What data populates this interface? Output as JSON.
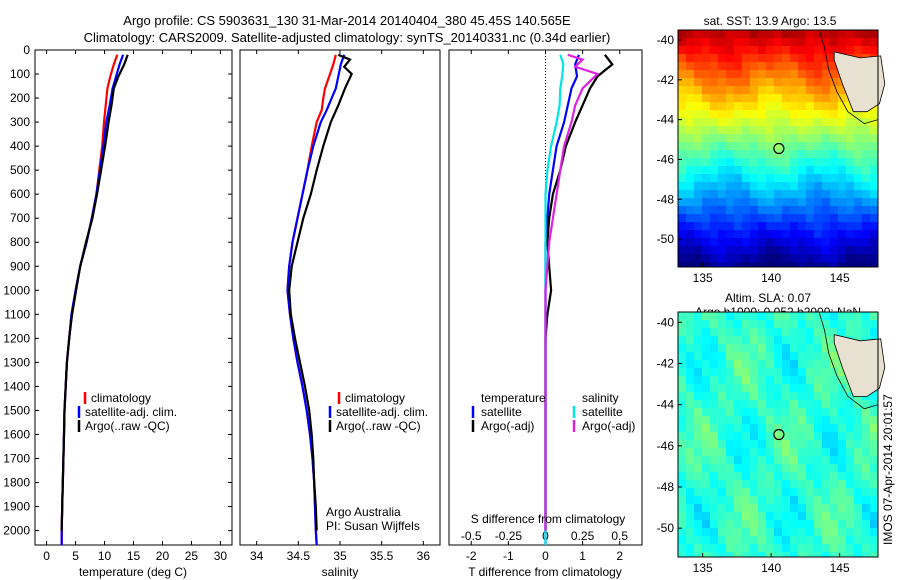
{
  "titles": {
    "line1": "Argo profile: CS 5903631_130 31-Mar-2014 20140404_380 45.45S 140.565E",
    "line2": "Climatology: CARS2009. Satellite-adjusted climatology: synTS_20140331.nc (0.34d earlier)"
  },
  "colors": {
    "clim": "#ff0000",
    "sat": "#0000ff",
    "argo": "#000000",
    "sat_s": "#00e5e5",
    "argo_s": "#e020e0"
  },
  "legend1": [
    "climatology",
    "satellite-adj. clim.",
    "Argo(..raw -QC)"
  ],
  "legend3": {
    "t_head": "temperature",
    "t_sat": "satellite",
    "t_argo": "Argo(-adj)",
    "s_head": "salinity",
    "s_sat": "satellite",
    "s_argo": "Argo(-adj)"
  },
  "panel2_note": {
    "l1": "Argo Australia",
    "l2": "PI: Susan Wijffels"
  },
  "panel3_s_label": "S difference from climatology",
  "map1_title": "sat. SST: 13.9  Argo: 13.5",
  "map2_title1": "Altim. SLA: 0.07",
  "map2_title2": "Argo h1000: 0.052 h2000: NaN",
  "watermark": "IMOS 07-Apr-2014 20:01:57",
  "chart_data": [
    {
      "type": "line",
      "xlabel": "temperature (deg C)",
      "ylabel": "",
      "xlim": [
        -2,
        32
      ],
      "ylim": [
        2060,
        0
      ],
      "xticks": [
        0,
        5,
        10,
        15,
        20,
        25,
        30
      ],
      "yticks": [
        0,
        100,
        200,
        300,
        400,
        500,
        600,
        700,
        800,
        900,
        1000,
        1100,
        1200,
        1300,
        1400,
        1500,
        1600,
        1700,
        1800,
        1900,
        2000
      ],
      "series": [
        {
          "name": "climatology",
          "color": "#ff0000",
          "points": [
            [
              12.2,
              20
            ],
            [
              11.6,
              60
            ],
            [
              11.0,
              110
            ],
            [
              10.5,
              160
            ],
            [
              10.2,
              230
            ],
            [
              9.9,
              300
            ],
            [
              9.6,
              400
            ],
            [
              9.1,
              500
            ],
            [
              8.6,
              600
            ],
            [
              7.8,
              700
            ],
            [
              6.9,
              800
            ],
            [
              5.8,
              900
            ],
            [
              5.0,
              1000
            ],
            [
              4.3,
              1100
            ],
            [
              3.9,
              1200
            ],
            [
              3.5,
              1300
            ],
            [
              3.3,
              1400
            ],
            [
              3.1,
              1500
            ],
            [
              3.0,
              1600
            ],
            [
              2.9,
              1700
            ],
            [
              2.8,
              1800
            ],
            [
              2.7,
              1900
            ],
            [
              2.6,
              2000
            ],
            [
              2.6,
              2060
            ]
          ]
        },
        {
          "name": "satellite-adj. clim.",
          "color": "#0000ff",
          "points": [
            [
              13.2,
              20
            ],
            [
              12.6,
              60
            ],
            [
              12.0,
              110
            ],
            [
              11.4,
              160
            ],
            [
              10.9,
              230
            ],
            [
              10.3,
              300
            ],
            [
              9.8,
              400
            ],
            [
              9.2,
              500
            ],
            [
              8.6,
              600
            ],
            [
              7.8,
              700
            ],
            [
              6.9,
              800
            ],
            [
              5.8,
              900
            ],
            [
              5.0,
              1000
            ],
            [
              4.3,
              1100
            ],
            [
              3.9,
              1200
            ],
            [
              3.5,
              1300
            ],
            [
              3.3,
              1400
            ],
            [
              3.1,
              1500
            ],
            [
              3.0,
              1600
            ],
            [
              2.9,
              1700
            ],
            [
              2.8,
              1800
            ],
            [
              2.7,
              1900
            ],
            [
              2.6,
              2000
            ],
            [
              2.6,
              2060
            ]
          ]
        },
        {
          "name": "Argo(..raw -QC)",
          "color": "#000000",
          "points": [
            [
              14.0,
              20
            ],
            [
              13.4,
              60
            ],
            [
              12.4,
              110
            ],
            [
              11.6,
              160
            ],
            [
              11.2,
              230
            ],
            [
              10.7,
              300
            ],
            [
              10.1,
              400
            ],
            [
              9.4,
              500
            ],
            [
              8.7,
              600
            ],
            [
              7.9,
              700
            ],
            [
              6.8,
              800
            ],
            [
              5.8,
              900
            ],
            [
              5.1,
              1000
            ],
            [
              4.4,
              1100
            ],
            [
              3.9,
              1200
            ],
            [
              3.5,
              1300
            ],
            [
              3.3,
              1400
            ],
            [
              3.1,
              1500
            ],
            [
              3.0,
              1600
            ],
            [
              2.9,
              1700
            ],
            [
              2.8,
              1800
            ],
            [
              2.7,
              1900
            ],
            [
              2.6,
              2000
            ]
          ]
        }
      ]
    },
    {
      "type": "line",
      "xlabel": "salinity",
      "ylabel": "",
      "xlim": [
        33.8,
        36.2
      ],
      "ylim": [
        2060,
        0
      ],
      "xticks": [
        34,
        34.5,
        35,
        35.5,
        36
      ],
      "yticks": [],
      "series": [
        {
          "name": "climatology",
          "color": "#ff0000",
          "points": [
            [
              34.95,
              20
            ],
            [
              34.92,
              60
            ],
            [
              34.87,
              110
            ],
            [
              34.82,
              160
            ],
            [
              34.8,
              200
            ],
            [
              34.78,
              250
            ],
            [
              34.72,
              300
            ],
            [
              34.66,
              400
            ],
            [
              34.61,
              500
            ],
            [
              34.55,
              600
            ],
            [
              34.49,
              700
            ],
            [
              34.43,
              800
            ],
            [
              34.39,
              900
            ],
            [
              34.37,
              1000
            ],
            [
              34.4,
              1100
            ],
            [
              34.44,
              1200
            ],
            [
              34.49,
              1300
            ],
            [
              34.55,
              1400
            ],
            [
              34.6,
              1500
            ],
            [
              34.64,
              1600
            ],
            [
              34.67,
              1700
            ],
            [
              34.69,
              1800
            ],
            [
              34.7,
              1900
            ],
            [
              34.71,
              2000
            ],
            [
              34.72,
              2060
            ]
          ]
        },
        {
          "name": "satellite-adj. clim.",
          "color": "#0000ff",
          "points": [
            [
              35.05,
              20
            ],
            [
              35.01,
              60
            ],
            [
              34.98,
              110
            ],
            [
              34.95,
              160
            ],
            [
              34.9,
              200
            ],
            [
              34.84,
              250
            ],
            [
              34.77,
              300
            ],
            [
              34.68,
              400
            ],
            [
              34.61,
              500
            ],
            [
              34.55,
              600
            ],
            [
              34.49,
              700
            ],
            [
              34.43,
              800
            ],
            [
              34.39,
              900
            ],
            [
              34.37,
              1000
            ],
            [
              34.4,
              1100
            ],
            [
              34.44,
              1200
            ],
            [
              34.49,
              1300
            ],
            [
              34.55,
              1400
            ],
            [
              34.6,
              1500
            ],
            [
              34.64,
              1600
            ],
            [
              34.67,
              1700
            ],
            [
              34.69,
              1800
            ],
            [
              34.7,
              1900
            ],
            [
              34.71,
              2000
            ],
            [
              34.72,
              2060
            ]
          ]
        },
        {
          "name": "Argo(..raw -QC)",
          "color": "#000000",
          "points": [
            [
              34.98,
              20
            ],
            [
              35.12,
              40
            ],
            [
              35.05,
              70
            ],
            [
              35.14,
              100
            ],
            [
              35.1,
              130
            ],
            [
              35.06,
              160
            ],
            [
              34.98,
              230
            ],
            [
              34.89,
              300
            ],
            [
              34.8,
              400
            ],
            [
              34.72,
              500
            ],
            [
              34.65,
              600
            ],
            [
              34.56,
              700
            ],
            [
              34.49,
              800
            ],
            [
              34.42,
              900
            ],
            [
              34.39,
              1000
            ],
            [
              34.41,
              1100
            ],
            [
              34.46,
              1200
            ],
            [
              34.52,
              1300
            ],
            [
              34.58,
              1400
            ],
            [
              34.63,
              1500
            ],
            [
              34.66,
              1600
            ],
            [
              34.68,
              1700
            ],
            [
              34.69,
              1800
            ],
            [
              34.71,
              1900
            ],
            [
              34.72,
              2000
            ]
          ]
        }
      ]
    },
    {
      "type": "line",
      "xlabel": "T difference from climatology",
      "ylabel": "",
      "xlim": [
        -2.6,
        2.6
      ],
      "ylim": [
        2060,
        0
      ],
      "xticks": [
        -2,
        -1,
        0,
        1,
        2
      ],
      "xticks_s": [
        -0.5,
        -0.25,
        0,
        0.25,
        0.5
      ],
      "yticks": [],
      "series": [
        {
          "name": "temperature satellite",
          "color": "#0000ff",
          "points": [
            [
              0.9,
              20
            ],
            [
              0.8,
              60
            ],
            [
              0.85,
              110
            ],
            [
              0.7,
              160
            ],
            [
              0.6,
              230
            ],
            [
              0.5,
              300
            ],
            [
              0.3,
              400
            ],
            [
              0.2,
              500
            ],
            [
              0.1,
              600
            ],
            [
              0.05,
              700
            ],
            [
              0.0,
              800
            ],
            [
              0.0,
              2060
            ]
          ]
        },
        {
          "name": "temperature Argo(-adj)",
          "color": "#000000",
          "points": [
            [
              1.6,
              20
            ],
            [
              1.8,
              60
            ],
            [
              1.4,
              110
            ],
            [
              1.2,
              160
            ],
            [
              1.0,
              230
            ],
            [
              0.8,
              300
            ],
            [
              0.55,
              400
            ],
            [
              0.4,
              500
            ],
            [
              0.2,
              600
            ],
            [
              0.1,
              700
            ],
            [
              0.05,
              800
            ],
            [
              0.1,
              900
            ],
            [
              0.15,
              1000
            ],
            [
              0.05,
              1100
            ],
            [
              0.0,
              1200
            ],
            [
              0.0,
              2000
            ]
          ]
        },
        {
          "name": "salinity satellite",
          "color": "#00e5e5",
          "points": [
            [
              0.4,
              20
            ],
            [
              0.48,
              60
            ],
            [
              0.45,
              110
            ],
            [
              0.4,
              160
            ],
            [
              0.38,
              230
            ],
            [
              0.3,
              300
            ],
            [
              0.15,
              400
            ],
            [
              0.05,
              500
            ],
            [
              0.0,
              600
            ],
            [
              0.0,
              2060
            ]
          ]
        },
        {
          "name": "salinity Argo(-adj)",
          "color": "#e020e0",
          "points": [
            [
              0.6,
              20
            ],
            [
              1.0,
              40
            ],
            [
              0.8,
              70
            ],
            [
              1.4,
              100
            ],
            [
              1.2,
              130
            ],
            [
              1.0,
              160
            ],
            [
              0.8,
              230
            ],
            [
              0.7,
              300
            ],
            [
              0.5,
              400
            ],
            [
              0.4,
              500
            ],
            [
              0.3,
              600
            ],
            [
              0.2,
              700
            ],
            [
              0.1,
              800
            ],
            [
              0.05,
              900
            ],
            [
              0.0,
              1000
            ],
            [
              0.0,
              2000
            ]
          ]
        }
      ]
    },
    {
      "type": "heatmap",
      "title": "sat. SST: 13.9  Argo: 13.5",
      "xlim": [
        133.2,
        147.8
      ],
      "ylim": [
        -51.4,
        -39.5
      ],
      "xticks": [
        135,
        140,
        145
      ],
      "yticks": [
        -40,
        -42,
        -44,
        -46,
        -48,
        -50
      ],
      "marker": [
        140.565,
        -45.45
      ]
    },
    {
      "type": "heatmap",
      "title": "Altim. SLA: 0.07 / Argo h1000: 0.052 h2000: NaN",
      "xlim": [
        133.2,
        147.8
      ],
      "ylim": [
        -51.4,
        -39.5
      ],
      "xticks": [
        135,
        140,
        145
      ],
      "yticks": [
        -40,
        -42,
        -44,
        -46,
        -48,
        -50
      ],
      "marker": [
        140.565,
        -45.45
      ]
    }
  ]
}
